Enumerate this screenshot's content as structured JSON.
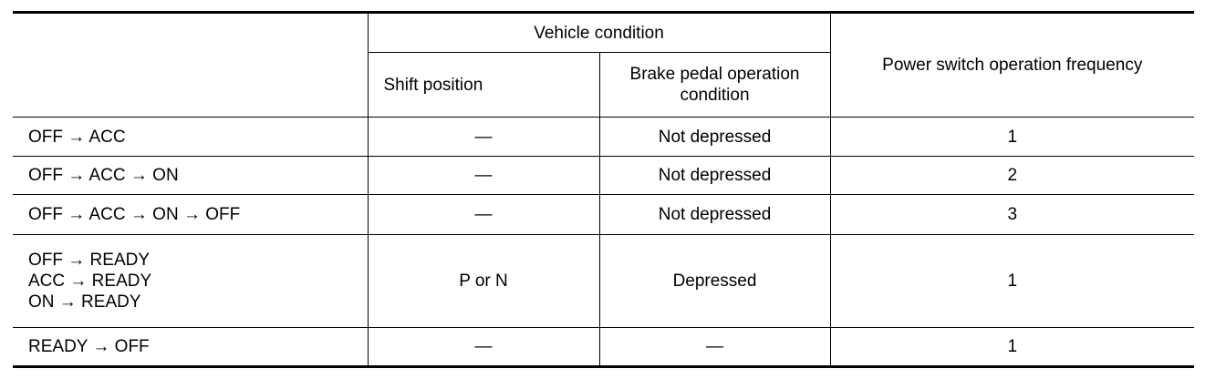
{
  "header": {
    "group": "Vehicle condition",
    "shift": "Shift position",
    "brake_line1": "Brake pedal operation",
    "brake_line2": "condition",
    "frequency": "Power switch operation frequency"
  },
  "rows": [
    {
      "lines": [
        "OFF → ACC"
      ],
      "shift": "—",
      "brake": "Not depressed",
      "freq": "1"
    },
    {
      "lines": [
        "OFF → ACC → ON"
      ],
      "shift": "—",
      "brake": "Not depressed",
      "freq": "2"
    },
    {
      "lines": [
        "OFF → ACC → ON → OFF"
      ],
      "shift": "—",
      "brake": "Not depressed",
      "freq": "3"
    },
    {
      "lines": [
        "OFF → READY",
        "ACC → READY",
        "ON → READY"
      ],
      "shift": "P or N",
      "brake": "Depressed",
      "freq": "1"
    },
    {
      "lines": [
        "READY → OFF"
      ],
      "shift": "—",
      "brake": "—",
      "freq": "1"
    }
  ]
}
